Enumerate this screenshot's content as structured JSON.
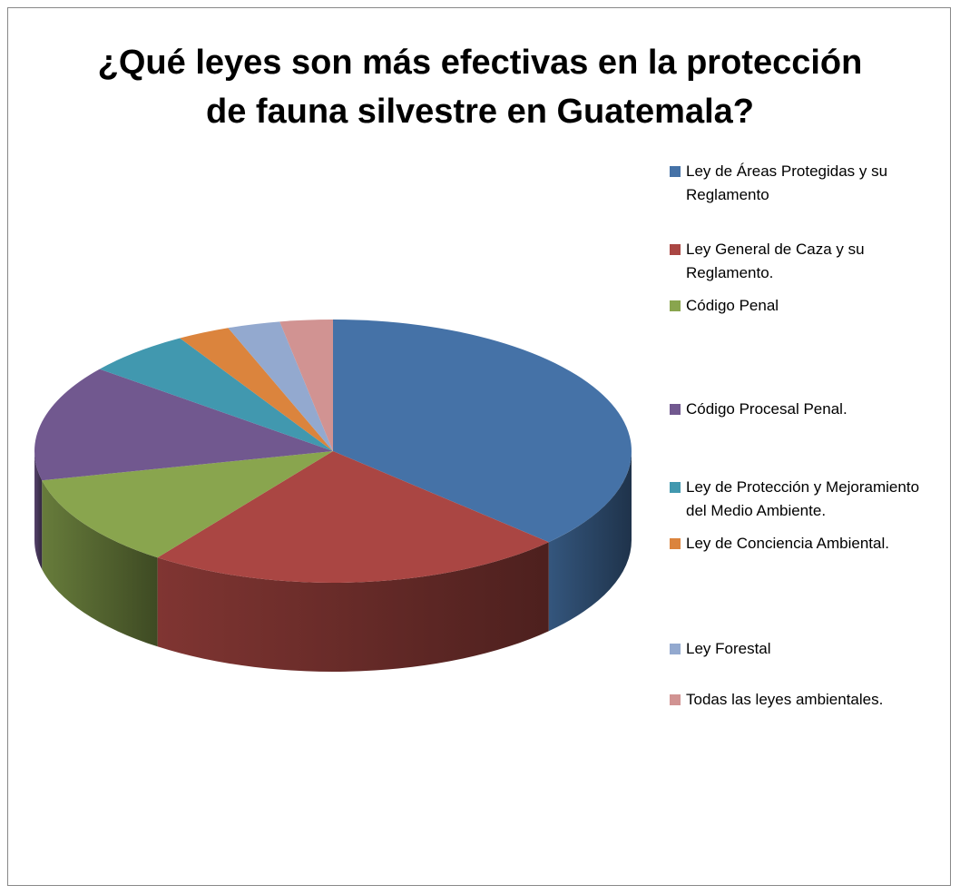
{
  "chart_data": {
    "type": "pie3d",
    "title": "¿Qué leyes son más efectivas en la protección\nde fauna silvestre en Guatemala?",
    "categories": [
      "Ley de Áreas Protegidas y su Reglamento",
      "Ley General de Caza y su Reglamento.",
      "Código Penal",
      "Código Procesal Penal.",
      "Ley de Protección y Mejoramiento del Medio Ambiente.",
      "Ley de Conciencia Ambiental.",
      "Ley Forestal",
      "Todas las leyes ambientales."
    ],
    "values": [
      13,
      8,
      4,
      5,
      2,
      1,
      1,
      1
    ],
    "colors": [
      "#4572a7",
      "#aa4643",
      "#89a54e",
      "#71588f",
      "#4198af",
      "#db843d",
      "#93a9cf",
      "#d19392"
    ],
    "legend": "right"
  }
}
